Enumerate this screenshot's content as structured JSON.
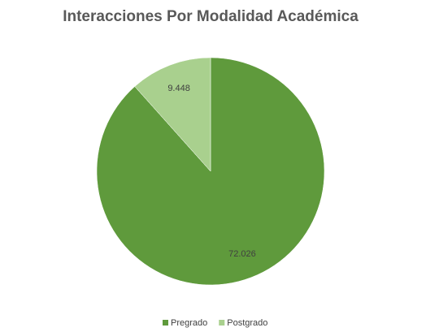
{
  "chart_data": {
    "type": "pie",
    "title": "Interacciones Por Modalidad Académica",
    "categories": [
      "Pregrado",
      "Postgrado"
    ],
    "values": [
      72026,
      9448
    ],
    "value_labels": [
      "72.026",
      "9.448"
    ],
    "colors": [
      "#5f9a3c",
      "#a9d08e"
    ],
    "legend": "bottom"
  }
}
